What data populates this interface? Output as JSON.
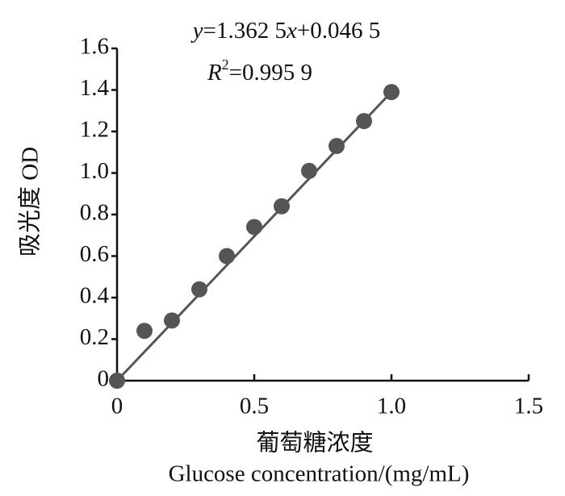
{
  "chart_data": {
    "type": "scatter",
    "equation": [
      "y",
      "=1.362 5",
      "x",
      "+0.046 5"
    ],
    "r_squared": [
      "R",
      "2",
      "=0.995 9"
    ],
    "x_label": [
      "葡萄糖浓度",
      "Glucose concentration/(mg/mL)"
    ],
    "y_label": "吸光度 OD",
    "x": [
      0,
      0.1,
      0.2,
      0.3,
      0.4,
      0.5,
      0.6,
      0.7,
      0.8,
      0.9,
      1.0
    ],
    "values": [
      0,
      0.24,
      0.29,
      0.44,
      0.6,
      0.74,
      0.84,
      1.01,
      1.13,
      1.25,
      1.39
    ],
    "color": "#555555",
    "fit_line": {
      "x": [
        0,
        1.0
      ],
      "y": [
        0,
        1.39
      ],
      "color": "#555555"
    },
    "xlim": [
      0,
      1.5
    ],
    "xticks": [
      0,
      0.5,
      {
        "value": 1,
        "label": "1.0"
      },
      1.5
    ],
    "ylim": [
      0,
      1.6
    ],
    "yticks": [
      0,
      0.2,
      0.4,
      0.6,
      0.8,
      {
        "value": 1,
        "label": "1.0"
      },
      1.2,
      1.4,
      1.6
    ]
  }
}
